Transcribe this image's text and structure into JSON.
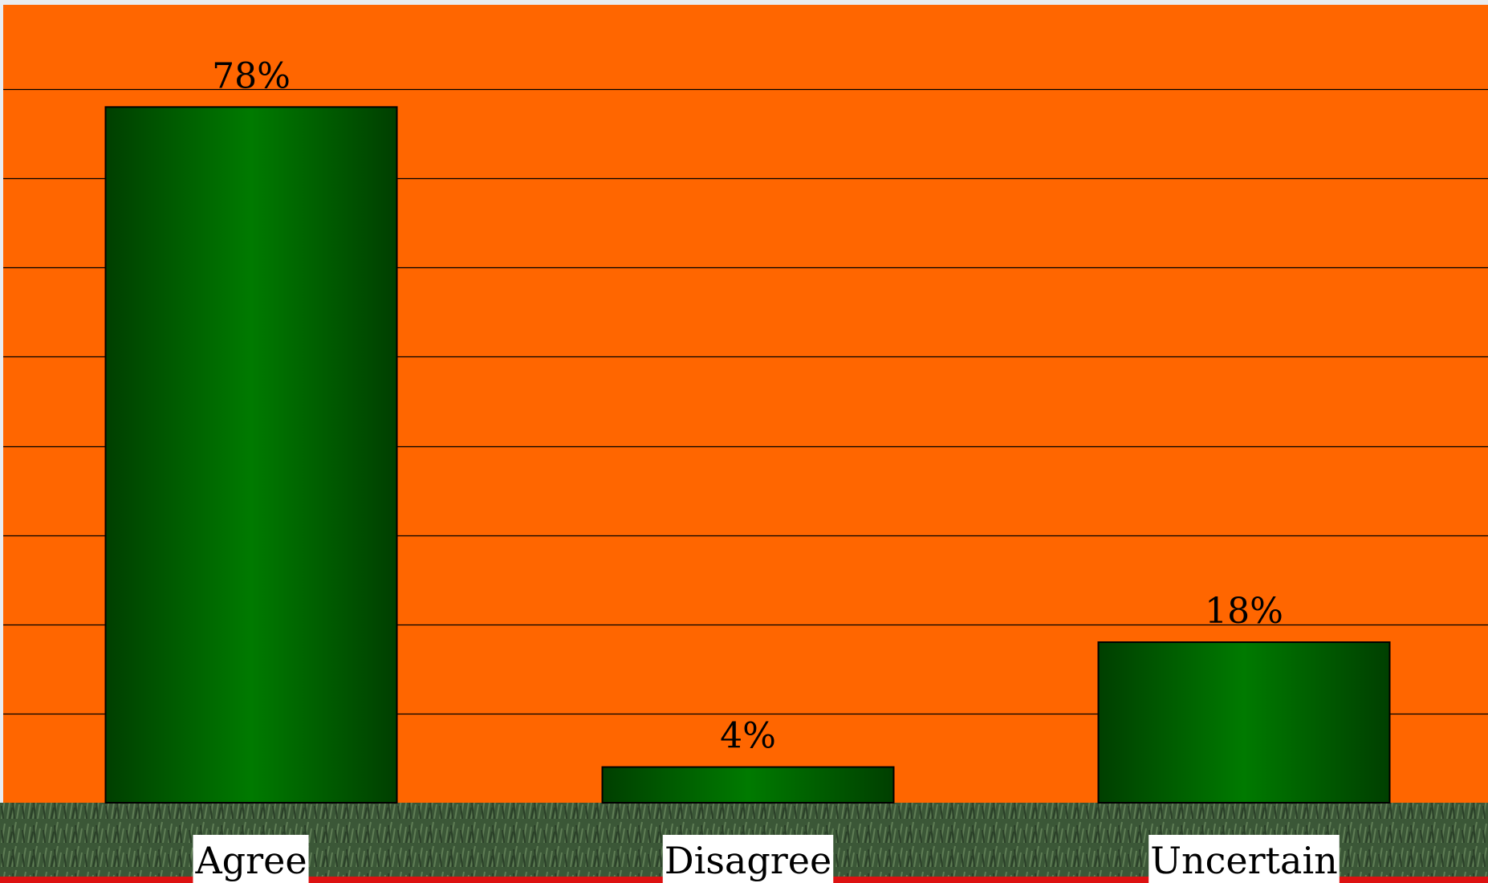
{
  "chart_data": {
    "type": "bar",
    "categories": [
      "Agree",
      "Disagree",
      "Uncertain"
    ],
    "values": [
      78,
      4,
      18
    ],
    "value_labels": [
      "78%",
      "4%",
      "18%"
    ],
    "ylim": [
      0,
      90
    ],
    "grid": true,
    "colors": {
      "plot_background": "#FF6600",
      "bar_dark": "#003F00",
      "bar_light": "#007A00",
      "bar_outline": "#000000",
      "gridline": "#000000",
      "label_box": "#FFFFFF",
      "baseline_stripe": "#DD1111",
      "ground_strip": "#3E5A3A"
    }
  }
}
